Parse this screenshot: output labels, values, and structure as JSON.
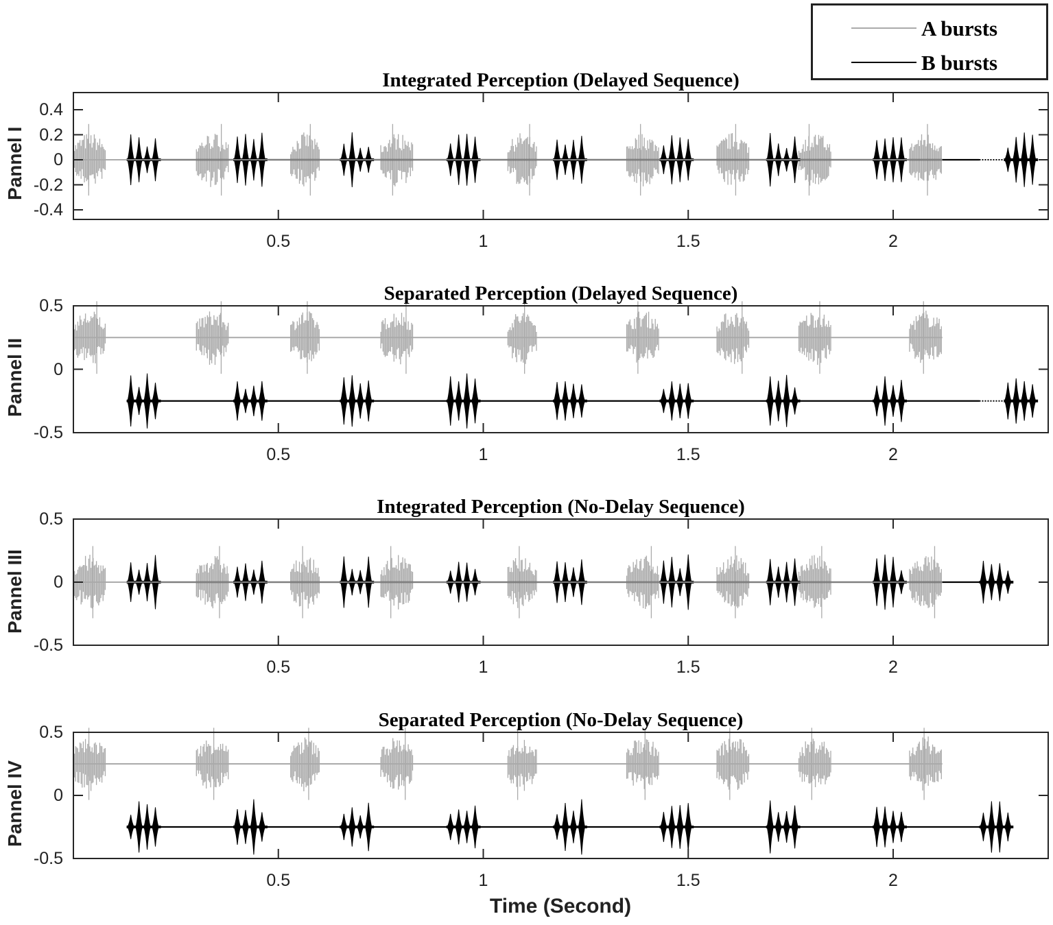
{
  "legend": {
    "items": [
      {
        "label": "A bursts",
        "color": "#aaaaaa"
      },
      {
        "label": "B bursts",
        "color": "#000000"
      }
    ]
  },
  "xlabel": "Time (Second)",
  "chart_data": [
    {
      "type": "line",
      "panel": "Pannel I",
      "title": "Integrated Perception (Delayed Sequence)",
      "xlabel": "Time (Second)",
      "ylabel": "Pannel I",
      "xlim": [
        0,
        2.38
      ],
      "ylim": [
        -0.5,
        0.5
      ],
      "xticks": [
        0.5,
        1,
        1.5,
        2
      ],
      "xtick_labels": [
        "0.5",
        "1",
        "1.5",
        "2"
      ],
      "yticks": [
        0.4,
        0.2,
        0,
        -0.2,
        -0.4
      ],
      "ytick_labels": [
        "0.4",
        "0.2",
        "0",
        "-0.2",
        "-0.4"
      ],
      "series": [
        {
          "name": "A bursts",
          "color": "#aaaaaa",
          "baseline": 0,
          "amplitude": 0.22,
          "bursts": [
            [
              0.0,
              0.08
            ],
            [
              0.3,
              0.38
            ],
            [
              0.53,
              0.6
            ],
            [
              0.75,
              0.83
            ],
            [
              1.06,
              1.13
            ],
            [
              1.35,
              1.43
            ],
            [
              1.57,
              1.65
            ],
            [
              1.77,
              1.85
            ],
            [
              2.04,
              2.12
            ]
          ],
          "line_end": 2.12
        },
        {
          "name": "B bursts",
          "color": "#000000",
          "baseline": 0,
          "amplitude": 0.2,
          "bursts": [
            [
              0.13,
              0.21
            ],
            [
              0.39,
              0.47
            ],
            [
              0.65,
              0.73
            ],
            [
              0.91,
              0.99
            ],
            [
              1.17,
              1.25
            ],
            [
              1.43,
              1.51
            ],
            [
              1.69,
              1.77
            ],
            [
              1.95,
              2.03
            ],
            [
              2.27,
              2.35
            ]
          ],
          "solid_line_to": 2.21,
          "dotted_gap": [
            2.21,
            2.27
          ]
        }
      ]
    },
    {
      "type": "line",
      "panel": "Pannel II",
      "title": "Separated Perception (Delayed Sequence)",
      "xlabel": "Time (Second)",
      "ylabel": "Pannel II",
      "xlim": [
        0,
        2.38
      ],
      "ylim": [
        -0.5,
        0.5
      ],
      "xticks": [
        0.5,
        1,
        1.5,
        2
      ],
      "xtick_labels": [
        "0.5",
        "1",
        "1.5",
        "2"
      ],
      "yticks": [
        0.5,
        0,
        -0.5
      ],
      "ytick_labels": [
        "0.5",
        "0",
        "-0.5"
      ],
      "series": [
        {
          "name": "A bursts",
          "color": "#aaaaaa",
          "baseline": 0.25,
          "amplitude": 0.22,
          "bursts": [
            [
              0.0,
              0.08
            ],
            [
              0.3,
              0.38
            ],
            [
              0.53,
              0.6
            ],
            [
              0.75,
              0.83
            ],
            [
              1.06,
              1.13
            ],
            [
              1.35,
              1.43
            ],
            [
              1.57,
              1.65
            ],
            [
              1.77,
              1.85
            ],
            [
              2.04,
              2.12
            ]
          ],
          "line_end": 2.12
        },
        {
          "name": "B bursts",
          "color": "#000000",
          "baseline": -0.25,
          "amplitude": 0.2,
          "bursts": [
            [
              0.13,
              0.21
            ],
            [
              0.39,
              0.47
            ],
            [
              0.65,
              0.73
            ],
            [
              0.91,
              0.99
            ],
            [
              1.17,
              1.25
            ],
            [
              1.43,
              1.51
            ],
            [
              1.69,
              1.77
            ],
            [
              1.95,
              2.03
            ],
            [
              2.27,
              2.35
            ]
          ],
          "solid_line_to": 2.21,
          "dotted_gap": [
            2.21,
            2.27
          ]
        }
      ]
    },
    {
      "type": "line",
      "panel": "Pannel III",
      "title": "Integrated Perception (No-Delay Sequence)",
      "xlabel": "Time (Second)",
      "ylabel": "Pannel III",
      "xlim": [
        0,
        2.38
      ],
      "ylim": [
        -0.5,
        0.5
      ],
      "xticks": [
        0.5,
        1,
        1.5,
        2
      ],
      "xtick_labels": [
        "0.5",
        "1",
        "1.5",
        "2"
      ],
      "yticks": [
        0.5,
        0,
        -0.5
      ],
      "ytick_labels": [
        "0.5",
        "0",
        "-0.5"
      ],
      "series": [
        {
          "name": "A bursts",
          "color": "#aaaaaa",
          "baseline": 0,
          "amplitude": 0.22,
          "bursts": [
            [
              0.0,
              0.08
            ],
            [
              0.3,
              0.38
            ],
            [
              0.53,
              0.6
            ],
            [
              0.75,
              0.83
            ],
            [
              1.06,
              1.13
            ],
            [
              1.35,
              1.43
            ],
            [
              1.57,
              1.65
            ],
            [
              1.77,
              1.85
            ],
            [
              2.04,
              2.12
            ]
          ],
          "line_end": 2.12
        },
        {
          "name": "B bursts",
          "color": "#000000",
          "baseline": 0,
          "amplitude": 0.2,
          "bursts": [
            [
              0.13,
              0.21
            ],
            [
              0.39,
              0.47
            ],
            [
              0.65,
              0.73
            ],
            [
              0.91,
              0.99
            ],
            [
              1.17,
              1.25
            ],
            [
              1.43,
              1.51
            ],
            [
              1.69,
              1.77
            ],
            [
              1.95,
              2.03
            ],
            [
              2.21,
              2.29
            ]
          ],
          "solid_line_to": 2.21,
          "dotted_gap": null
        }
      ]
    },
    {
      "type": "line",
      "panel": "Pannel IV",
      "title": "Separated Perception (No-Delay Sequence)",
      "xlabel": "Time (Second)",
      "ylabel": "Pannel IV",
      "xlim": [
        0,
        2.38
      ],
      "ylim": [
        -0.5,
        0.5
      ],
      "xticks": [
        0.5,
        1,
        1.5,
        2
      ],
      "xtick_labels": [
        "0.5",
        "1",
        "1.5",
        "2"
      ],
      "yticks": [
        0.5,
        0,
        -0.5
      ],
      "ytick_labels": [
        "0.5",
        "0",
        "-0.5"
      ],
      "series": [
        {
          "name": "A bursts",
          "color": "#aaaaaa",
          "baseline": 0.25,
          "amplitude": 0.22,
          "bursts": [
            [
              0.0,
              0.08
            ],
            [
              0.3,
              0.38
            ],
            [
              0.53,
              0.6
            ],
            [
              0.75,
              0.83
            ],
            [
              1.06,
              1.13
            ],
            [
              1.35,
              1.43
            ],
            [
              1.57,
              1.65
            ],
            [
              1.77,
              1.85
            ],
            [
              2.04,
              2.12
            ]
          ],
          "line_end": 2.12
        },
        {
          "name": "B bursts",
          "color": "#000000",
          "baseline": -0.25,
          "amplitude": 0.2,
          "bursts": [
            [
              0.13,
              0.21
            ],
            [
              0.39,
              0.47
            ],
            [
              0.65,
              0.73
            ],
            [
              0.91,
              0.99
            ],
            [
              1.17,
              1.25
            ],
            [
              1.43,
              1.51
            ],
            [
              1.69,
              1.77
            ],
            [
              1.95,
              2.03
            ],
            [
              2.21,
              2.29
            ]
          ],
          "solid_line_to": 2.21,
          "dotted_gap": null
        }
      ]
    }
  ]
}
